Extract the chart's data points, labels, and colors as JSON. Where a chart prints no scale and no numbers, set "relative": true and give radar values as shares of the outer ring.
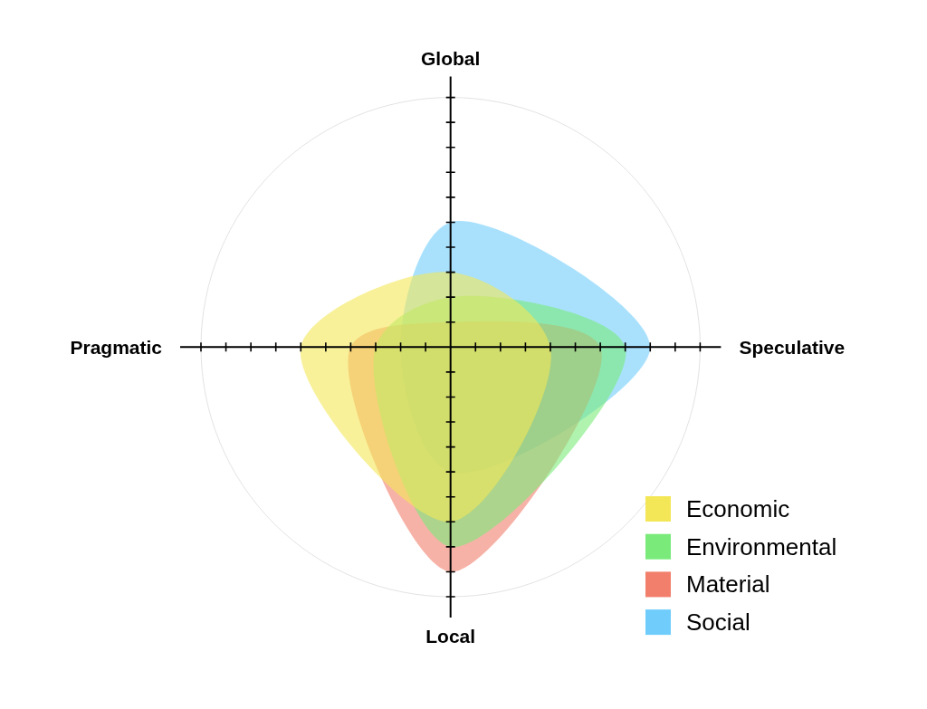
{
  "chart_data": {
    "type": "radar",
    "relative": true,
    "categories": [
      "Global",
      "Speculative",
      "Local",
      "Pragmatic"
    ],
    "series": [
      {
        "name": "Economic",
        "color": "#f3e757",
        "values": [
          0.3,
          0.4,
          0.7,
          0.6
        ]
      },
      {
        "name": "Environmental",
        "color": "#7aeb7a",
        "values": [
          0.2,
          0.7,
          0.8,
          0.3
        ]
      },
      {
        "name": "Material",
        "color": "#f27f6c",
        "values": [
          0.1,
          0.6,
          0.9,
          0.4
        ]
      },
      {
        "name": "Social",
        "color": "#70cdfb",
        "values": [
          0.5,
          0.8,
          0.5,
          0.2
        ]
      }
    ],
    "legend": "bottom right"
  }
}
